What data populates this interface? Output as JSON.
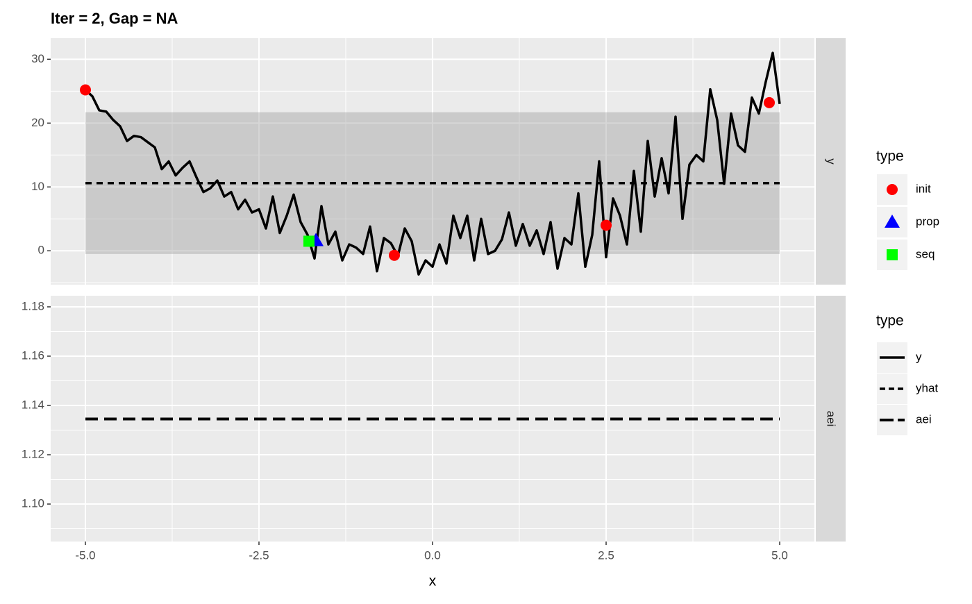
{
  "chart_data": [
    {
      "type": "line",
      "title": "Iter = 2, Gap = NA",
      "strip": "y",
      "legend_title": "type",
      "xlim": [
        -5.5,
        5.5
      ],
      "ylim": [
        -5.3,
        33.3
      ],
      "yticks": [
        0,
        10,
        20,
        30
      ],
      "grid": true,
      "band": {
        "x": [
          -5,
          5
        ],
        "lower": -0.5,
        "upper": 21.7,
        "color": "#999999"
      },
      "series": [
        {
          "name": "y",
          "style": "solid",
          "color": "#000000",
          "x": [
            -5,
            -4.9,
            -4.8,
            -4.7,
            -4.6,
            -4.5,
            -4.4,
            -4.3,
            -4.2,
            -4.1,
            -4,
            -3.9,
            -3.8,
            -3.7,
            -3.6,
            -3.5,
            -3.4,
            -3.3,
            -3.2,
            -3.1,
            -3,
            -2.9,
            -2.8,
            -2.7,
            -2.6,
            -2.5,
            -2.4,
            -2.3,
            -2.2,
            -2.1,
            -2,
            -1.9,
            -1.8,
            -1.7,
            -1.6,
            -1.5,
            -1.4,
            -1.3,
            -1.2,
            -1.1,
            -1,
            -0.9,
            -0.8,
            -0.7,
            -0.6,
            -0.5,
            -0.4,
            -0.3,
            -0.2,
            -0.1,
            0,
            0.1,
            0.2,
            0.3,
            0.4,
            0.5,
            0.6,
            0.7,
            0.8,
            0.9,
            1,
            1.1,
            1.2,
            1.3,
            1.4,
            1.5,
            1.6,
            1.7,
            1.8,
            1.9,
            2,
            2.1,
            2.2,
            2.3,
            2.4,
            2.5,
            2.6,
            2.7,
            2.8,
            2.9,
            3,
            3.1,
            3.2,
            3.3,
            3.4,
            3.5,
            3.6,
            3.7,
            3.8,
            3.9,
            4,
            4.1,
            4.2,
            4.3,
            4.4,
            4.5,
            4.6,
            4.7,
            4.8,
            4.9,
            5
          ],
          "values": [
            25.2,
            24.2,
            22,
            21.8,
            20.5,
            19.5,
            17.2,
            18,
            17.8,
            17,
            16.2,
            12.8,
            14,
            11.8,
            13,
            14,
            11.5,
            9.2,
            9.8,
            11,
            8.5,
            9.2,
            6.5,
            8,
            6,
            6.5,
            3.5,
            8.5,
            2.8,
            5.5,
            8.8,
            4.5,
            2.5,
            -1.2,
            7,
            1,
            3,
            -1.5,
            1,
            0.5,
            -0.5,
            3.8,
            -3.2,
            2,
            1.2,
            -0.8,
            3.5,
            1.5,
            -3.7,
            -1.5,
            -2.5,
            1,
            -2,
            5.5,
            2,
            5.5,
            -1.5,
            5,
            -0.5,
            0,
            1.8,
            6,
            0.8,
            4.2,
            0.8,
            3.2,
            -0.5,
            4.5,
            -2.8,
            2,
            1,
            9,
            -2.5,
            2.5,
            14,
            -1,
            8.2,
            5.5,
            1,
            12.5,
            3,
            17.2,
            8.5,
            14.5,
            9,
            21,
            5,
            13.5,
            15,
            14,
            25.3,
            20.5,
            10.5,
            21.5,
            16.5,
            15.5,
            24,
            21.5,
            26.5,
            31,
            23
          ]
        },
        {
          "name": "yhat",
          "style": "dashed",
          "color": "#000000",
          "x": [
            -5,
            5
          ],
          "values": [
            10.6,
            10.6
          ]
        }
      ],
      "points": [
        {
          "name": "init",
          "shape": "circle",
          "color": "#ff0000",
          "x": [
            -5,
            -0.55,
            2.5,
            4.85
          ],
          "values": [
            25.2,
            -0.7,
            4.0,
            23.2
          ]
        },
        {
          "name": "prop",
          "shape": "triangle",
          "color": "#0000ff",
          "x": [
            -1.68
          ],
          "values": [
            1.6
          ]
        },
        {
          "name": "seq",
          "shape": "square",
          "color": "#00ff00",
          "x": [
            -1.78
          ],
          "values": [
            1.5
          ]
        }
      ]
    },
    {
      "type": "line",
      "strip": "aei",
      "legend_title": "type",
      "xlabel": "x",
      "xlim": [
        -5.5,
        5.5
      ],
      "xticks": [
        {
          "value": -5,
          "label": "-5.0"
        },
        -2.5,
        {
          "value": 0,
          "label": "0.0"
        },
        2.5,
        {
          "value": 5,
          "label": "5.0"
        }
      ],
      "ylim": [
        1.0848,
        1.1845
      ],
      "yticks": [
        {
          "value": 1.1,
          "label": "1.10"
        },
        1.12,
        1.14,
        1.16,
        1.18
      ],
      "grid": true,
      "series": [
        {
          "name": "aei",
          "style": "longdash",
          "color": "#000000",
          "x": [
            -5,
            5
          ],
          "values": [
            1.1345,
            1.1345
          ]
        }
      ]
    }
  ]
}
